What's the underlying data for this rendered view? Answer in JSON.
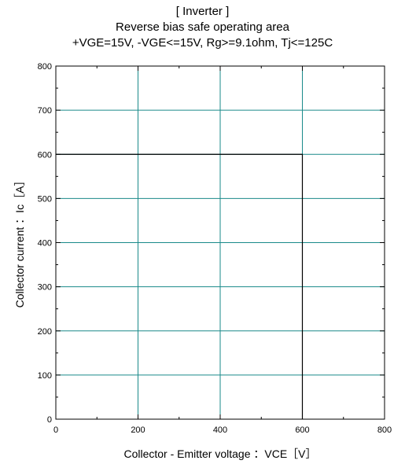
{
  "chart_data": {
    "type": "line",
    "title": "[ Inverter ]",
    "subtitle_lines": [
      "Reverse bias safe operating area",
      "+VGE=15V, -VGE<=15V, Rg>=9.1ohm, Tj<=125C"
    ],
    "xlabel": "Collector - Emitter voltage ：VCE［V］",
    "ylabel": "Collector current ：Ic［A］",
    "xlim": [
      0,
      800
    ],
    "ylim": [
      0,
      800
    ],
    "x_ticks": [
      0,
      200,
      400,
      600,
      800
    ],
    "y_ticks": [
      0,
      100,
      200,
      300,
      400,
      500,
      600,
      700,
      800
    ],
    "x_tick_labels": [
      "0",
      "200",
      "400",
      "600",
      "800"
    ],
    "y_tick_labels": [
      "0",
      "100",
      "200",
      "300",
      "400",
      "500",
      "600",
      "700",
      "800"
    ],
    "grid": true,
    "grid_color": "#1a8a8a",
    "series": [
      {
        "color": "#000000",
        "x": [
          0,
          600,
          600
        ],
        "y": [
          600,
          600,
          0
        ]
      }
    ]
  }
}
